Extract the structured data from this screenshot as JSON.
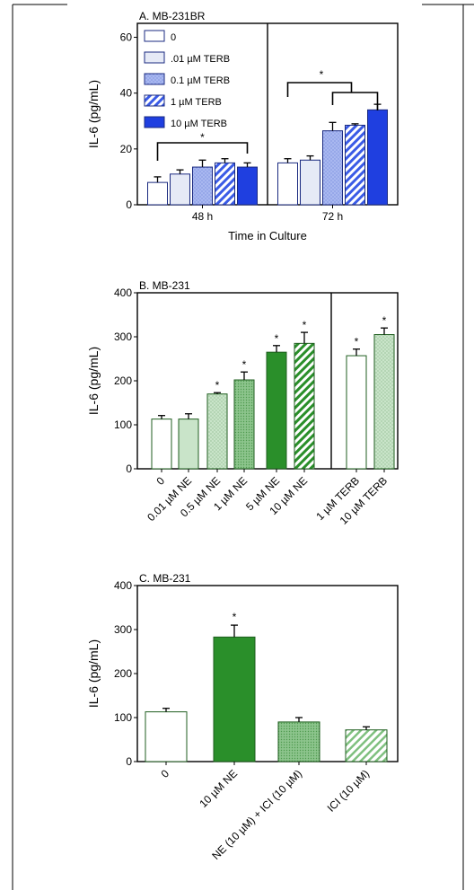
{
  "colors": {
    "blue_dark": "#1f3fe0",
    "blue_light": "#a9b8f0",
    "blue_pale": "#e6eaf6",
    "green_dark": "#2a8f2a",
    "green_light": "#c9e4c9",
    "green_mid": "#8cc48c",
    "outline": "#000000"
  },
  "chart_data": [
    {
      "type": "bar",
      "title": "A. MB-231BR",
      "xlabel": "Time in Culture",
      "ylabel": "IL-6 (pg/mL)",
      "ylim": [
        0,
        65
      ],
      "yticks": [
        "0",
        "20",
        "40",
        "60"
      ],
      "categories": [
        "48 h",
        "72 h"
      ],
      "legend_position": "top-left",
      "series": [
        {
          "name": "0",
          "values": [
            8,
            15
          ],
          "errors": [
            2,
            1.5
          ],
          "fill": "white"
        },
        {
          "name": ".01 µM TERB",
          "values": [
            11,
            16
          ],
          "errors": [
            1.5,
            1.5
          ],
          "fill": "pale"
        },
        {
          "name": "0.1 µM TERB",
          "values": [
            13.5,
            26.5
          ],
          "errors": [
            2.5,
            3
          ],
          "fill": "light-dotted"
        },
        {
          "name": "1 µM TERB",
          "values": [
            15,
            28.5
          ],
          "errors": [
            1.5,
            0.5
          ],
          "fill": "hatched"
        },
        {
          "name": "10 µM TERB",
          "values": [
            13.5,
            34
          ],
          "errors": [
            1.5,
            2
          ],
          "fill": "dark"
        }
      ],
      "annotations": [
        "*",
        "*"
      ]
    },
    {
      "type": "bar",
      "title": "B. MB-231",
      "ylabel": "IL-6 (pg/mL)",
      "ylim": [
        0,
        400
      ],
      "yticks": [
        "0",
        "100",
        "200",
        "300",
        "400"
      ],
      "categories": [
        "0",
        "0.01 µM NE",
        "0.5 µM NE",
        "1 µM NE",
        "5 µM NE",
        "10 µM NE",
        "1 µM TERB",
        "10 µM TERB"
      ],
      "values": [
        113,
        113,
        170,
        202,
        265,
        285,
        257,
        305
      ],
      "errors": [
        8,
        12,
        3,
        18,
        15,
        25,
        15,
        15
      ],
      "significance": [
        "",
        "",
        "*",
        "*",
        "*",
        "*",
        "*",
        "*"
      ]
    },
    {
      "type": "bar",
      "title": "C. MB-231",
      "ylabel": "IL-6 (pg/mL)",
      "ylim": [
        0,
        400
      ],
      "yticks": [
        "0",
        "100",
        "200",
        "300",
        "400"
      ],
      "categories": [
        "0",
        "10 µM NE",
        "NE (10 µM) + ICI (10 µM)",
        "ICI (10 µM)"
      ],
      "values": [
        113,
        283,
        90,
        72
      ],
      "errors": [
        8,
        27,
        10,
        7
      ],
      "significance": [
        "",
        "*",
        "",
        ""
      ]
    }
  ]
}
